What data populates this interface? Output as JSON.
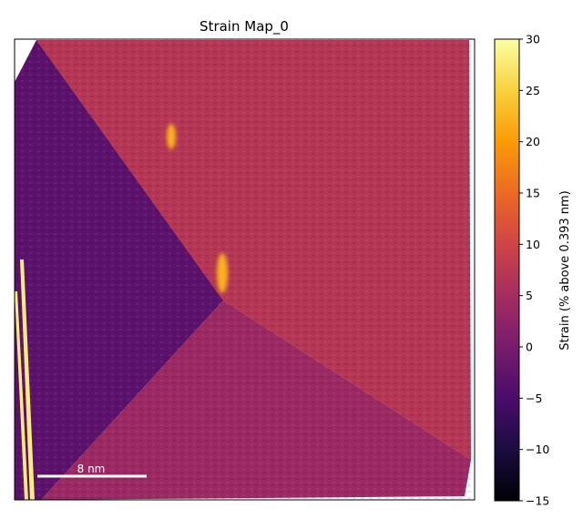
{
  "chart_data": {
    "type": "heatmap",
    "title": "Strain Map_0",
    "colormap": "inferno",
    "colorbar": {
      "label": "Strain (% above 0.393 nm)",
      "range": [
        -15,
        30
      ],
      "ticks": [
        30,
        25,
        20,
        15,
        10,
        5,
        0,
        -5,
        -10,
        -15
      ],
      "tick_labels": [
        "30",
        "25",
        "20",
        "15",
        "10",
        "5",
        "0",
        "−5",
        "−10",
        "−15"
      ]
    },
    "scale_bar": {
      "label": "8 nm",
      "value_nm": 8
    },
    "regions": [
      {
        "name": "left domain",
        "strain": -3
      },
      {
        "name": "top/right domain",
        "strain": 7
      },
      {
        "name": "bottom domain",
        "strain": 4
      },
      {
        "name": "center boundary hotspot",
        "strain": 22
      },
      {
        "name": "left edge stripe",
        "strain": 28
      }
    ],
    "axes": {
      "ticks_visible": false,
      "grid": false
    }
  },
  "colors": {
    "inferno_stops": [
      "#000004",
      "#1b0c41",
      "#4a0c6b",
      "#781c6d",
      "#a52c60",
      "#cf4446",
      "#ed6925",
      "#fb9b06",
      "#f7d13d",
      "#fcffa4"
    ]
  }
}
